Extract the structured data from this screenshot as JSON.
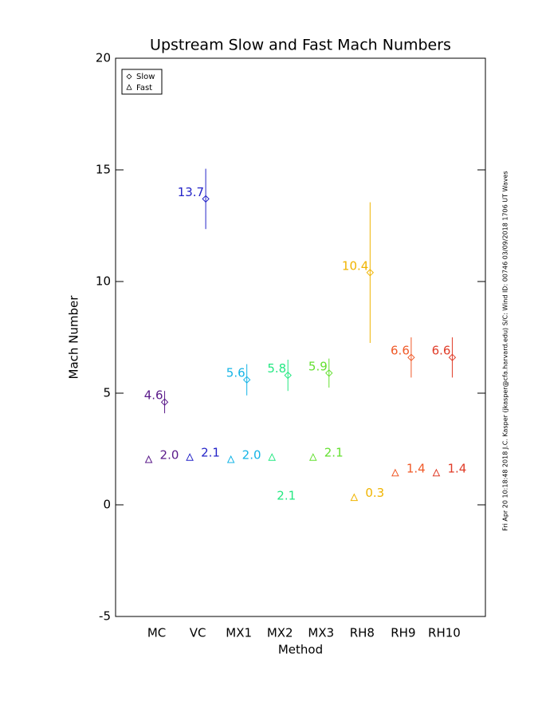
{
  "chart_data": {
    "type": "errorbar",
    "title": "Upstream Slow and Fast Mach Numbers",
    "x_label": "Method",
    "y_label": "Mach Number",
    "categories": [
      "MC",
      "VC",
      "MX1",
      "MX2",
      "MX3",
      "RH8",
      "RH9",
      "RH10"
    ],
    "colors": [
      "#5a1a8a",
      "#2424c8",
      "#14b4e6",
      "#24e882",
      "#64e030",
      "#f0b400",
      "#f05a28",
      "#e03c28"
    ],
    "series": [
      {
        "name": "Slow",
        "marker": "diamond",
        "values": [
          4.6,
          13.7,
          5.6,
          5.8,
          5.9,
          10.4,
          6.6,
          6.6
        ],
        "value_labels": [
          "4.6",
          "13.7",
          "5.6",
          "5.8",
          "5.9",
          "10.4",
          "6.6",
          "6.6"
        ],
        "errors": [
          0.5,
          1.35,
          0.7,
          0.7,
          0.65,
          3.15,
          0.9,
          0.9
        ]
      },
      {
        "name": "Fast",
        "marker": "triangle",
        "values": [
          2.0,
          2.1,
          2.0,
          2.1,
          2.1,
          0.3,
          1.4,
          1.4
        ],
        "value_labels": [
          "2.0",
          "2.1",
          "2.0",
          "2.1",
          "2.1",
          "0.3",
          "1.4",
          "1.4"
        ]
      }
    ],
    "ylim": [
      -5,
      20
    ],
    "yticks": [
      -5,
      0,
      5,
      10,
      15,
      20
    ],
    "legend": "upper-left",
    "footnote": "Fri Apr 20 10:18:48 2018   J.C. Kasper (jkasper@cfa.harvard.edu)   S/C: Wind ID: 00746 03/09/2018   1706 UT Waves"
  }
}
